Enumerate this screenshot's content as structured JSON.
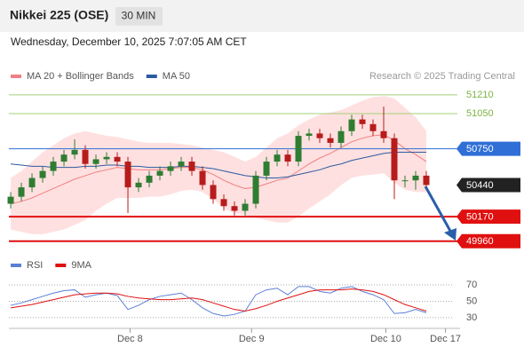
{
  "header": {
    "title": "Nikkei 225 (OSE)",
    "interval": "30 MIN",
    "datetime": "Wednesday, December 10, 2025 7:07:05 AM CET"
  },
  "chart_data": [
    {
      "type": "candlestick",
      "source": "Research © 2025 Trading Central",
      "xlim": [
        -0.17,
        41.5
      ],
      "xticks": [
        {
          "value": 11.2,
          "label": "Dec 8"
        },
        {
          "value": 22.6,
          "label": "Dec 9"
        },
        {
          "value": 35.2,
          "label": "Dec 10"
        },
        {
          "value": 40.8,
          "label": "Dec 17"
        }
      ],
      "ylim": [
        49860,
        51300
      ],
      "up_color": "#2e7d32",
      "down_color": "#b71c1c",
      "open": [
        50280,
        50340,
        50420,
        50500,
        50560,
        50640,
        50700,
        50740,
        50620,
        50660,
        50680,
        50640,
        50420,
        50460,
        50520,
        50560,
        50600,
        50640,
        50560,
        50440,
        50320,
        50260,
        50220,
        50280,
        50520,
        50640,
        50700,
        50640,
        50860,
        50880,
        50840,
        50800,
        50900,
        51000,
        50960,
        50900,
        50840,
        50480,
        50480,
        50520
      ],
      "high": [
        50380,
        50460,
        50540,
        50600,
        50680,
        50740,
        50830,
        50780,
        50700,
        50720,
        50720,
        50680,
        50500,
        50560,
        50600,
        50640,
        50680,
        50680,
        50600,
        50480,
        50360,
        50300,
        50320,
        50560,
        50680,
        50740,
        50740,
        50900,
        50920,
        50920,
        50880,
        50940,
        51040,
        51040,
        51000,
        51110,
        50880,
        50520,
        50560,
        50560
      ],
      "low": [
        50240,
        50300,
        50380,
        50460,
        50520,
        50600,
        50660,
        50580,
        50580,
        50620,
        50600,
        50200,
        50380,
        50420,
        50480,
        50520,
        50560,
        50520,
        50400,
        50280,
        50220,
        50180,
        50180,
        50240,
        50480,
        50600,
        50600,
        50600,
        50820,
        50800,
        50760,
        50760,
        50860,
        50920,
        50860,
        50800,
        50320,
        50420,
        50400,
        50400
      ],
      "close": [
        50340,
        50420,
        50500,
        50560,
        50640,
        50700,
        50740,
        50620,
        50660,
        50680,
        50640,
        50420,
        50460,
        50520,
        50560,
        50600,
        50640,
        50560,
        50440,
        50320,
        50260,
        50220,
        50280,
        50520,
        50640,
        50700,
        50640,
        50860,
        50880,
        50840,
        50800,
        50900,
        51000,
        50960,
        50900,
        50840,
        50480,
        50480,
        50520,
        50440
      ],
      "series": [
        {
          "name": "MA 20 + Bollinger Bands",
          "color": "#f08080",
          "band_color": "#ffd6d6",
          "values": [
            50280,
            50300,
            50330,
            50370,
            50410,
            50450,
            50490,
            50520,
            50550,
            50570,
            50590,
            50580,
            50570,
            50570,
            50570,
            50580,
            50590,
            50590,
            50570,
            50530,
            50480,
            50440,
            50410,
            50420,
            50450,
            50480,
            50500,
            50560,
            50620,
            50670,
            50710,
            50760,
            50810,
            50840,
            50860,
            50870,
            50820,
            50750,
            50700,
            50640
          ],
          "upper": [
            50500,
            50560,
            50640,
            50720,
            50780,
            50840,
            50880,
            50900,
            50880,
            50860,
            50850,
            50830,
            50810,
            50800,
            50800,
            50800,
            50790,
            50780,
            50760,
            50740,
            50720,
            50680,
            50640,
            50680,
            50760,
            50840,
            50880,
            50950,
            51000,
            51040,
            51060,
            51080,
            51120,
            51160,
            51190,
            51200,
            51180,
            51100,
            51020,
            50900
          ],
          "lower": [
            50060,
            50040,
            50020,
            50020,
            50040,
            50060,
            50100,
            50140,
            50220,
            50280,
            50330,
            50330,
            50330,
            50340,
            50340,
            50360,
            50390,
            50400,
            50380,
            50320,
            50240,
            50200,
            50180,
            50160,
            50140,
            50120,
            50120,
            50170,
            50240,
            50300,
            50360,
            50440,
            50500,
            50520,
            50530,
            50540,
            50460,
            50400,
            50380,
            50380
          ]
        },
        {
          "name": "MA 50",
          "color": "#2c5aa0",
          "values": [
            50620,
            50610,
            50600,
            50600,
            50590,
            50590,
            50590,
            50600,
            50600,
            50610,
            50610,
            50600,
            50600,
            50590,
            50590,
            50590,
            50600,
            50600,
            50590,
            50580,
            50560,
            50540,
            50520,
            50510,
            50500,
            50500,
            50510,
            50530,
            50550,
            50570,
            50600,
            50620,
            50650,
            50670,
            50690,
            50710,
            50720,
            50720,
            50720,
            50720
          ]
        }
      ],
      "levels": [
        {
          "value": 51210,
          "color": "#a5d07a",
          "style": "line"
        },
        {
          "value": 51050,
          "color": "#a5d07a",
          "style": "line"
        },
        {
          "value": 50750,
          "color": "#2f6fd6",
          "style": "tag"
        },
        {
          "value": 50440,
          "color": "#222222",
          "style": "price"
        },
        {
          "value": 50170,
          "color": "#e01010",
          "style": "tag"
        },
        {
          "value": 49960,
          "color": "#e01010",
          "style": "tag"
        }
      ]
    },
    {
      "type": "line",
      "ylim": [
        19,
        82
      ],
      "yticks": [
        70,
        50,
        30
      ],
      "series": [
        {
          "name": "RSI",
          "color": "#5b7fd6",
          "values": [
            45,
            48,
            52,
            56,
            60,
            63,
            64,
            55,
            58,
            60,
            57,
            40,
            45,
            52,
            56,
            58,
            60,
            52,
            42,
            35,
            32,
            34,
            38,
            58,
            64,
            66,
            58,
            68,
            68,
            62,
            60,
            66,
            68,
            62,
            58,
            52,
            35,
            36,
            40,
            36
          ]
        },
        {
          "name": "9MA",
          "color": "#e01010",
          "values": [
            42,
            44,
            46,
            49,
            52,
            55,
            58,
            59,
            60,
            60,
            59,
            56,
            54,
            53,
            52,
            52,
            53,
            54,
            52,
            48,
            44,
            40,
            38,
            41,
            45,
            50,
            54,
            58,
            62,
            64,
            64,
            64,
            65,
            64,
            62,
            58,
            52,
            46,
            42,
            38
          ]
        }
      ]
    }
  ]
}
